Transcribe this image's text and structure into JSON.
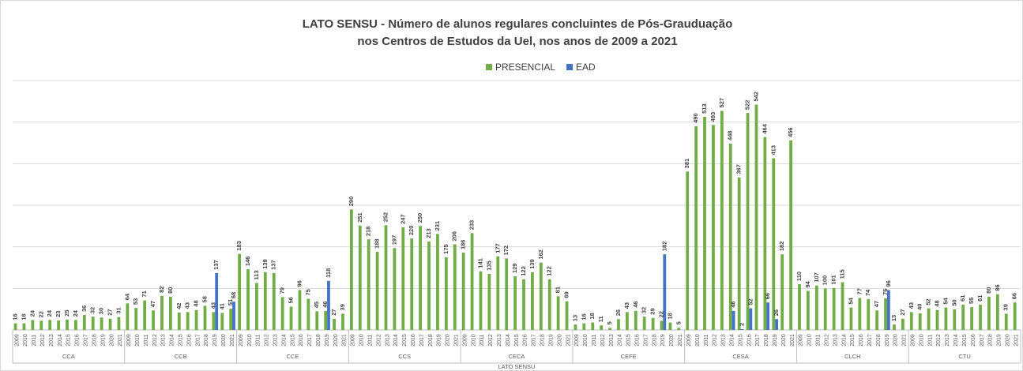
{
  "chart_data": {
    "type": "bar",
    "title": "LATO SENSU - Número de alunos regulares concluintes de Pós-Grauduação",
    "subtitle": "nos Centros de Estudos da Uel, nos anos de 2009 a 2021",
    "outer_label": "LATO SENSU",
    "groups": [
      {
        "name": "CCA",
        "categories": [
          "2009",
          "2010",
          "2011",
          "2012",
          "2013",
          "2014",
          "2015",
          "2016",
          "2017",
          "2018",
          "2019",
          "2020",
          "2021"
        ]
      },
      {
        "name": "CCB",
        "categories": [
          "2009",
          "2010",
          "2011",
          "2012",
          "2013",
          "2014",
          "2015",
          "2016",
          "2017",
          "2018",
          "2019",
          "2020",
          "2021"
        ]
      },
      {
        "name": "CCE",
        "categories": [
          "2009",
          "2010",
          "2011",
          "2012",
          "2013",
          "2014",
          "2015",
          "2016",
          "2017",
          "2018",
          "2019",
          "2020",
          "2021"
        ]
      },
      {
        "name": "CCS",
        "categories": [
          "2009",
          "2010",
          "2011",
          "2012",
          "2013",
          "2014",
          "2015",
          "2016",
          "2017",
          "2018",
          "2019",
          "2020",
          "2021"
        ]
      },
      {
        "name": "CECA",
        "categories": [
          "2009",
          "2010",
          "2011",
          "2012",
          "2013",
          "2014",
          "2015",
          "2016",
          "2017",
          "2018",
          "2019",
          "2020",
          "2021"
        ]
      },
      {
        "name": "CEFE",
        "categories": [
          "2009",
          "2010",
          "2011",
          "2012",
          "2013",
          "2014",
          "2015",
          "2016",
          "2017",
          "2018",
          "2019",
          "2020",
          "2021"
        ]
      },
      {
        "name": "CESA",
        "categories": [
          "2009",
          "2010",
          "2011",
          "2012",
          "2013",
          "2014",
          "2015",
          "2016",
          "2017",
          "2018",
          "2019",
          "2020",
          "2021"
        ]
      },
      {
        "name": "CLCH",
        "categories": [
          "2009",
          "2010",
          "2011",
          "2012",
          "2013",
          "2014",
          "2015",
          "2016",
          "2017",
          "2018",
          "2019",
          "2020",
          "2021"
        ]
      },
      {
        "name": "CTU",
        "categories": [
          "2009",
          "2010",
          "2011",
          "2012",
          "2013",
          "2014",
          "2015",
          "2016",
          "2017",
          "2018",
          "2019",
          "2020",
          "2021"
        ]
      }
    ],
    "series": [
      {
        "name": "PRESENCIAL",
        "color": "#70ad47",
        "values": [
          16,
          16,
          24,
          22,
          24,
          23,
          25,
          24,
          36,
          32,
          30,
          27,
          31,
          64,
          53,
          71,
          47,
          82,
          80,
          42,
          43,
          48,
          58,
          43,
          41,
          51,
          183,
          146,
          113,
          139,
          137,
          79,
          56,
          96,
          75,
          45,
          46,
          27,
          39,
          290,
          251,
          218,
          188,
          252,
          197,
          247,
          220,
          250,
          213,
          231,
          175,
          206,
          186,
          233,
          141,
          135,
          177,
          172,
          129,
          122,
          139,
          162,
          122,
          81,
          69,
          13,
          16,
          18,
          11,
          5,
          26,
          43,
          46,
          32,
          29,
          22,
          18,
          5,
          381,
          490,
          513,
          493,
          527,
          448,
          367,
          522,
          542,
          464,
          413,
          182,
          456,
          110,
          94,
          107,
          100,
          101,
          115,
          54,
          77,
          74,
          47,
          76,
          13,
          27,
          43,
          40,
          52,
          48,
          54,
          50,
          61,
          55,
          61,
          80,
          86,
          39,
          66
        ]
      },
      {
        "name": "EAD",
        "color": "#4472c4",
        "values": [
          null,
          null,
          null,
          null,
          null,
          null,
          null,
          null,
          null,
          null,
          null,
          null,
          null,
          null,
          null,
          null,
          null,
          null,
          null,
          null,
          null,
          null,
          null,
          137,
          null,
          68,
          null,
          null,
          null,
          null,
          null,
          null,
          null,
          null,
          null,
          null,
          118,
          null,
          null,
          null,
          null,
          null,
          null,
          null,
          null,
          null,
          null,
          null,
          null,
          null,
          null,
          null,
          null,
          null,
          null,
          null,
          null,
          null,
          null,
          null,
          null,
          null,
          null,
          null,
          null,
          null,
          null,
          null,
          null,
          null,
          null,
          null,
          null,
          null,
          null,
          182,
          null,
          null,
          null,
          null,
          null,
          null,
          null,
          46,
          2,
          52,
          null,
          66,
          26,
          null,
          null,
          null,
          null,
          null,
          null,
          null,
          null,
          null,
          null,
          null,
          null,
          96,
          null,
          null,
          null,
          null,
          null,
          null,
          null,
          null,
          null,
          null,
          null,
          null,
          null,
          null,
          null
        ]
      }
    ],
    "ylim": [
      0,
      600
    ],
    "yticks": [
      0,
      100,
      200,
      300,
      400,
      500,
      600
    ],
    "grid": true,
    "legend": "top"
  }
}
